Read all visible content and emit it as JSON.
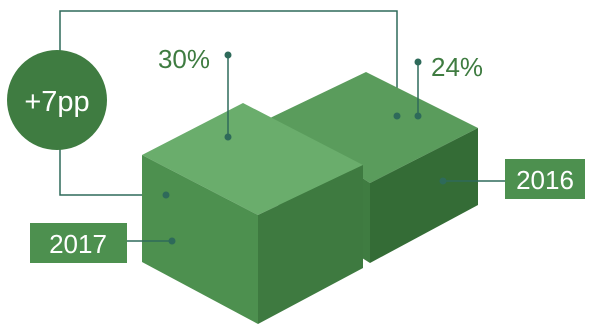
{
  "chart_data": {
    "type": "bar",
    "series": [
      {
        "name": "2017",
        "value": 30,
        "value_label": "30%"
      },
      {
        "name": "2016",
        "value": 24,
        "value_label": "24%"
      }
    ],
    "difference_label": "+7pp",
    "colors": {
      "cube_top_2017": "#6aad6c",
      "cube_left_2017": "#4d904f",
      "cube_right_2017": "#3e7a40",
      "cube_top_2016": "#5a9c5c",
      "cube_left_2016": "#3f7c41",
      "cube_right_2016": "#346c36",
      "circle": "#3f7c41",
      "tag": "#4d904f",
      "connector": "#2e6a5a",
      "value_text": "#3f7c41"
    }
  }
}
